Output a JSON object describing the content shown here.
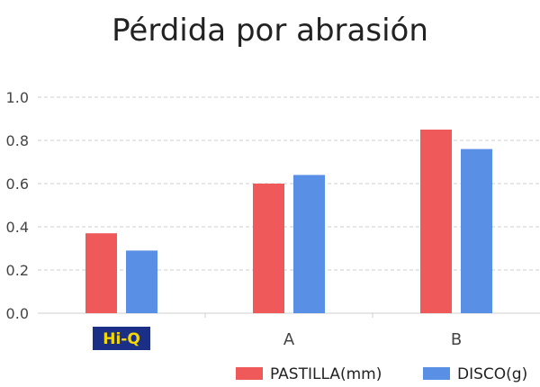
{
  "chart_data": {
    "type": "bar",
    "title": "Pérdida por abrasión",
    "categories": [
      "Hi-Q",
      "A",
      "B"
    ],
    "series": [
      {
        "name": "PASTILLA(mm)",
        "color": "#f0595a",
        "values": [
          0.37,
          0.6,
          0.85
        ]
      },
      {
        "name": "DISCO(g)",
        "color": "#5a8fe6",
        "values": [
          0.29,
          0.64,
          0.76
        ]
      }
    ],
    "ylim": [
      0,
      1.0
    ],
    "yticks": [
      0.0,
      0.2,
      0.4,
      0.6,
      0.8,
      1.0
    ],
    "ytick_labels": [
      "0.0",
      "0.2",
      "0.4",
      "0.6",
      "0.8",
      "1.0"
    ],
    "grid": true,
    "legend_position": "bottom-right",
    "brand_category": {
      "label": "Hi-Q",
      "background": "#1b2f87",
      "text_color": "#f5d800"
    }
  }
}
